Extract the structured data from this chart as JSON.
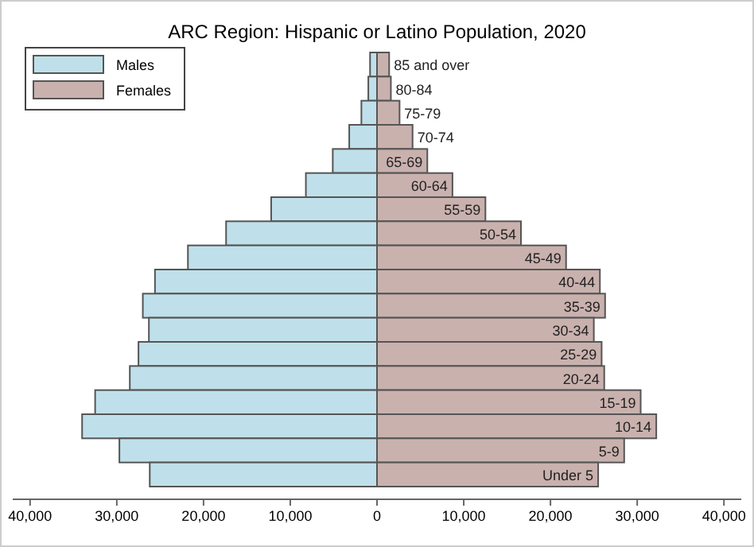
{
  "chart_data": {
    "type": "bar",
    "orientation": "horizontal",
    "title": "ARC Region: Hispanic or Latino Population, 2020",
    "categories": [
      "85 and over",
      "80-84",
      "75-79",
      "70-74",
      "65-69",
      "60-64",
      "55-59",
      "50-54",
      "45-49",
      "40-44",
      "35-39",
      "30-34",
      "25-29",
      "20-24",
      "15-19",
      "10-14",
      "5-9",
      "Under 5"
    ],
    "series": [
      {
        "name": "Males",
        "color": "#bfe0ea",
        "values": [
          -800,
          -1000,
          -1800,
          -3200,
          -5100,
          -8200,
          -12200,
          -17400,
          -21800,
          -25600,
          -27000,
          -26300,
          -27500,
          -28500,
          -32500,
          -34000,
          -29700,
          -26200
        ]
      },
      {
        "name": "Females",
        "color": "#c9b1ae",
        "values": [
          1400,
          1600,
          2600,
          4100,
          5800,
          8700,
          12500,
          16600,
          21800,
          25700,
          26300,
          25000,
          25900,
          26200,
          30400,
          32200,
          28500,
          25500
        ]
      }
    ],
    "xlim": [
      -42000,
      42000
    ],
    "xticks": [
      {
        "value": -40000,
        "label": "40,000"
      },
      {
        "value": -30000,
        "label": "30,000"
      },
      {
        "value": -20000,
        "label": "20,000"
      },
      {
        "value": -10000,
        "label": "10,000"
      },
      0,
      {
        "value": 10000,
        "label": "10,000"
      },
      {
        "value": 20000,
        "label": "20,000"
      },
      {
        "value": 30000,
        "label": "30,000"
      },
      {
        "value": 40000,
        "label": "40,000"
      }
    ],
    "stacked": true,
    "legend": "top left"
  }
}
